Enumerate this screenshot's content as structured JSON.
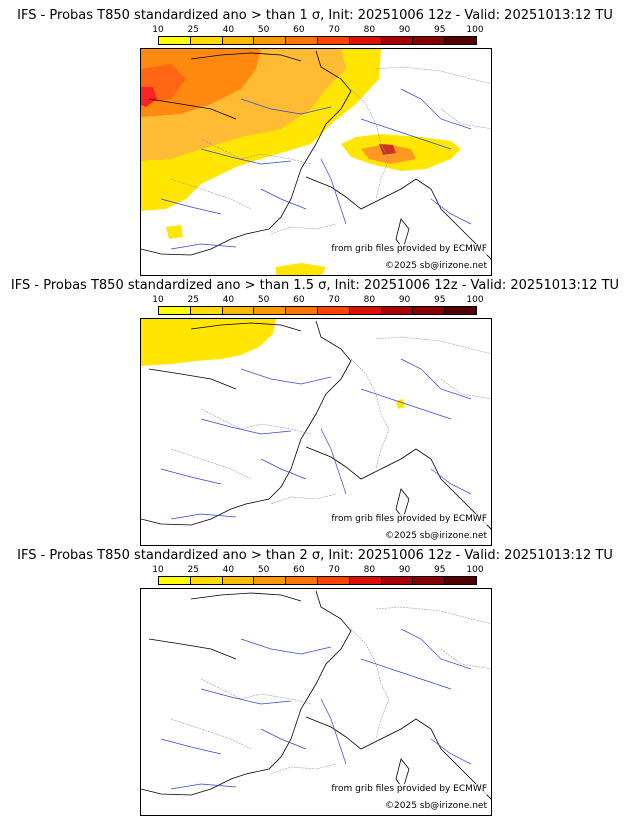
{
  "colorbar": {
    "labels": [
      "10",
      "25",
      "40",
      "50",
      "60",
      "70",
      "80",
      "90",
      "95",
      "100"
    ],
    "colors": [
      "#ffff00",
      "#ffdd00",
      "#ffbb00",
      "#ff9900",
      "#ff7700",
      "#ff4400",
      "#dd1100",
      "#aa0000",
      "#880000",
      "#550000"
    ]
  },
  "panels": [
    {
      "title": "IFS - Probas T850  standardized ano > than 1 σ, Init: 20251006 12z - Valid: 20251013:12 TU",
      "source_credit": "from grib files provided by ECMWF",
      "copyright": "©2025 sb@irizone.net"
    },
    {
      "title": "IFS - Probas T850  standardized ano > than 1.5 σ, Init: 20251006 12z - Valid: 20251013:12 TU",
      "source_credit": "from grib files provided by ECMWF",
      "copyright": "©2025 sb@irizone.net"
    },
    {
      "title": "IFS - Probas T850  standardized ano > than 2 σ, Init: 20251006 12z - Valid: 20251013:12 TU",
      "source_credit": "from grib files provided by ECMWF",
      "copyright": "©2025 sb@irizone.net"
    }
  ],
  "colors": {
    "coastline": "#000000",
    "rivers": "#3344dd",
    "borders": "#999999"
  }
}
